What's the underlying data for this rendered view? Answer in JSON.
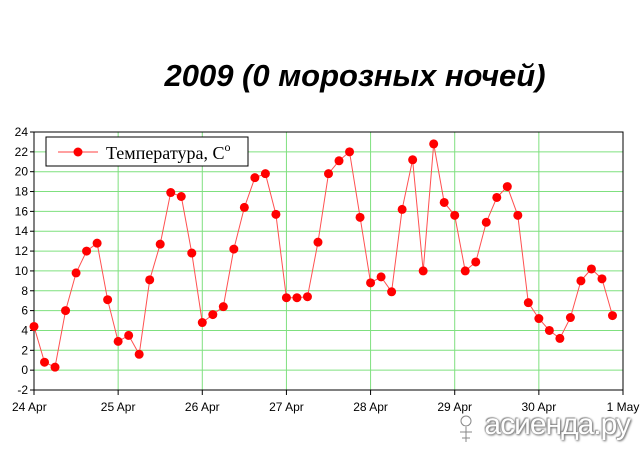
{
  "title": "2009 (0 морозных ночей)",
  "watermark": "асиенда.ру",
  "chart_data": {
    "type": "line",
    "title": "2009 (0 морозных ночей)",
    "xlabel": "",
    "ylabel": "",
    "x_ticks": [
      "24 Apr",
      "25 Apr",
      "26 Apr",
      "27 Apr",
      "28 Apr",
      "29 Apr",
      "30 Apr",
      "1 May"
    ],
    "ylim": [
      -2,
      24
    ],
    "y_ticks": [
      -2,
      0,
      2,
      4,
      6,
      8,
      10,
      12,
      14,
      16,
      18,
      20,
      22,
      24
    ],
    "grid": true,
    "legend": "top-left",
    "series": [
      {
        "name": "Температура, С°",
        "color": "#ff0000",
        "points_per_day": 8,
        "values": [
          4.4,
          0.8,
          0.3,
          6.0,
          9.8,
          12.0,
          12.8,
          7.1,
          2.9,
          3.5,
          1.6,
          9.1,
          12.7,
          17.9,
          17.5,
          11.8,
          4.8,
          5.6,
          6.4,
          12.2,
          16.4,
          19.4,
          19.8,
          15.7,
          7.3,
          7.3,
          7.4,
          12.9,
          19.8,
          21.1,
          22.0,
          15.4,
          8.8,
          9.4,
          7.9,
          16.2,
          21.2,
          10.0,
          22.8,
          16.9,
          15.6,
          10.0,
          10.9,
          14.9,
          17.4,
          18.5,
          15.6,
          6.8,
          5.2,
          4.0,
          3.2,
          5.3,
          9.0,
          10.2,
          9.2,
          5.5
        ]
      }
    ]
  }
}
